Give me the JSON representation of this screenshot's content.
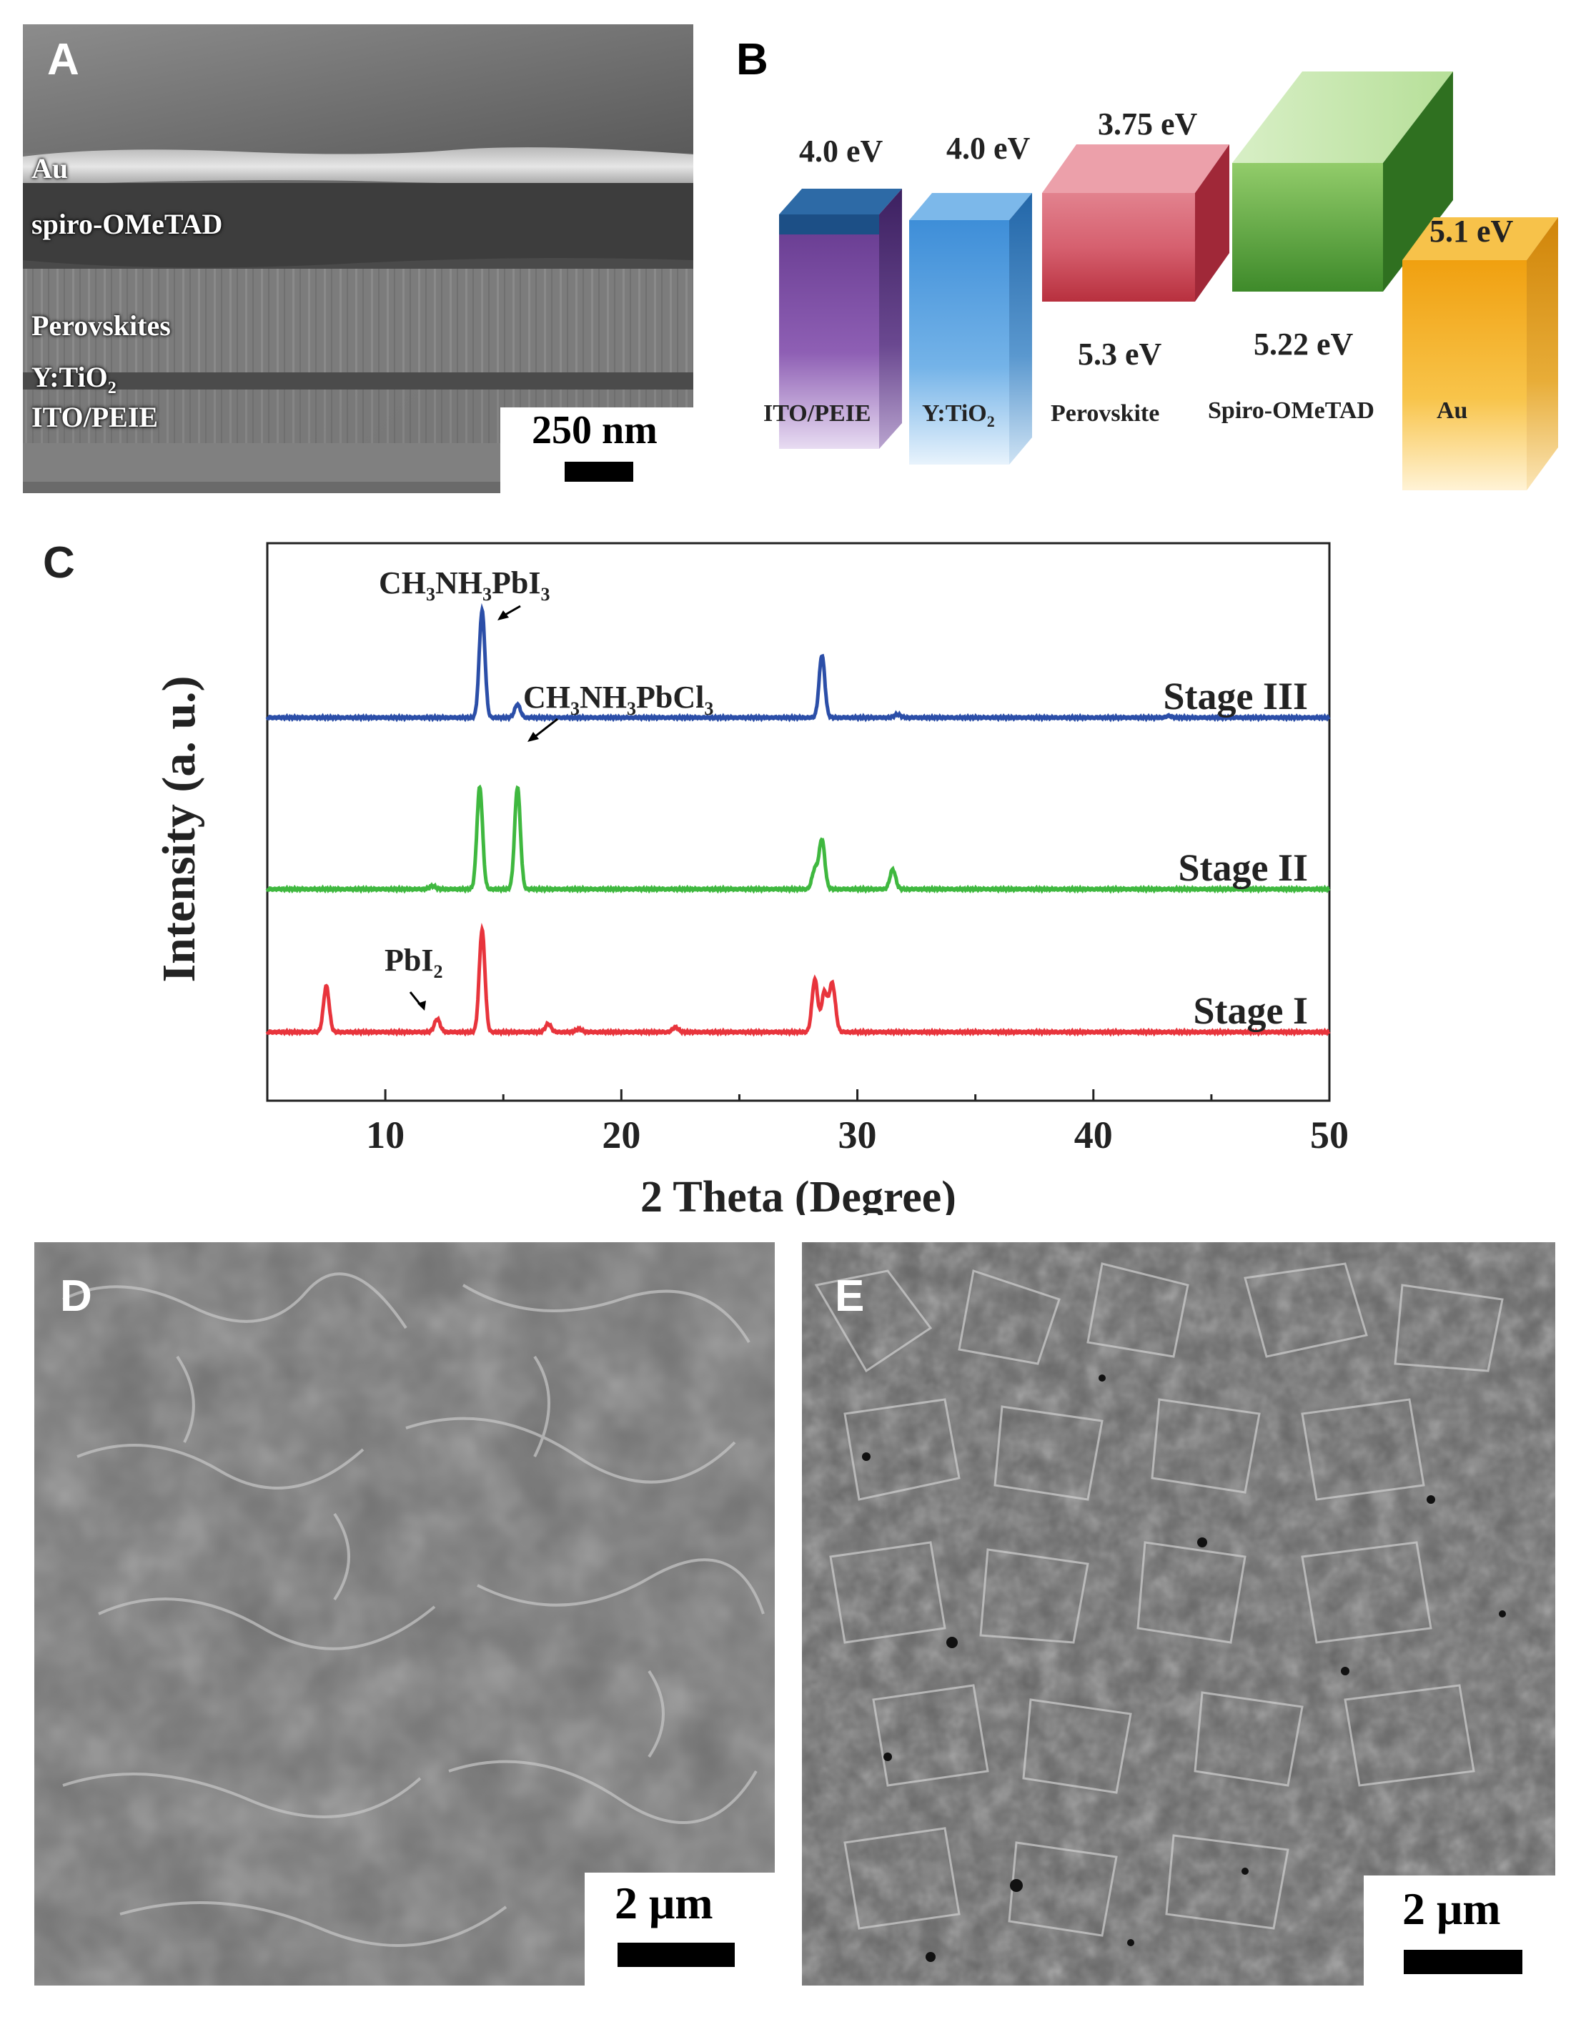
{
  "panels": {
    "a": {
      "letter": "A",
      "layers": [
        "Au",
        "spiro-OMeTAD",
        "Perovskites",
        "Y:TiO",
        "ITO/PEIE"
      ],
      "y_tio_sub": "2",
      "scale_label": "250 nm"
    },
    "b": {
      "letter": "B",
      "blocks": [
        {
          "name": "ITO/PEIE",
          "top_energy": "4.0 eV",
          "color": "#7b4fa0"
        },
        {
          "name": "Y:TiO",
          "name_sub": "2",
          "top_energy": "4.0 eV",
          "color": "#4d94d6"
        },
        {
          "name": "Perovskite",
          "top_energy": "3.75 eV",
          "bottom_energy": "5.3 eV",
          "color": "#c9485a"
        },
        {
          "name": "Spiro-OMeTAD",
          "bottom_energy": "5.22 eV",
          "color": "#5aa33a"
        },
        {
          "name": "Au",
          "top_energy": "5.1 eV",
          "color": "#f2a81a"
        }
      ]
    },
    "c": {
      "letter": "C"
    },
    "d": {
      "letter": "D",
      "scale_label": "2 μm"
    },
    "e": {
      "letter": "E",
      "scale_label": "2 μm"
    }
  },
  "chart_data": {
    "type": "line",
    "xlabel": "2 Theta (Degree)",
    "ylabel": "Intensity (a. u.)",
    "xlim": [
      5,
      50
    ],
    "x_ticks": [
      10,
      20,
      30,
      40,
      50
    ],
    "grid": false,
    "series": [
      {
        "name": "Stage III",
        "color": "#2b4ea8",
        "peaks": [
          {
            "x": 14.1,
            "height": 0.65
          },
          {
            "x": 15.6,
            "height": 0.08
          },
          {
            "x": 28.5,
            "height": 0.38
          },
          {
            "x": 31.7,
            "height": 0.02
          },
          {
            "x": 43.2,
            "height": 0.01
          }
        ]
      },
      {
        "name": "Stage II",
        "color": "#3fb83f",
        "peaks": [
          {
            "x": 12.0,
            "height": 0.02
          },
          {
            "x": 14.0,
            "height": 0.62
          },
          {
            "x": 15.6,
            "height": 0.62
          },
          {
            "x": 28.2,
            "height": 0.12
          },
          {
            "x": 28.5,
            "height": 0.3
          },
          {
            "x": 31.5,
            "height": 0.12
          }
        ]
      },
      {
        "name": "Stage I",
        "color": "#e8343c",
        "peaks": [
          {
            "x": 7.5,
            "height": 0.28
          },
          {
            "x": 12.2,
            "height": 0.08
          },
          {
            "x": 14.1,
            "height": 0.62
          },
          {
            "x": 16.9,
            "height": 0.05
          },
          {
            "x": 18.2,
            "height": 0.02
          },
          {
            "x": 22.3,
            "height": 0.03
          },
          {
            "x": 28.2,
            "height": 0.32
          },
          {
            "x": 28.6,
            "height": 0.24
          },
          {
            "x": 28.9,
            "height": 0.2
          },
          {
            "x": 29.0,
            "height": 0.12
          }
        ]
      }
    ],
    "annotations": [
      {
        "text": "CH",
        "sub1": "3",
        "mid": "NH",
        "sub2": "3",
        "tail": "PbI",
        "sub3": "3"
      },
      {
        "text": "CH",
        "sub1": "3",
        "mid": "NH",
        "sub2": "3",
        "tail": "PbCl",
        "sub3": "3"
      },
      {
        "text": "PbI",
        "sub1": "2"
      }
    ]
  }
}
